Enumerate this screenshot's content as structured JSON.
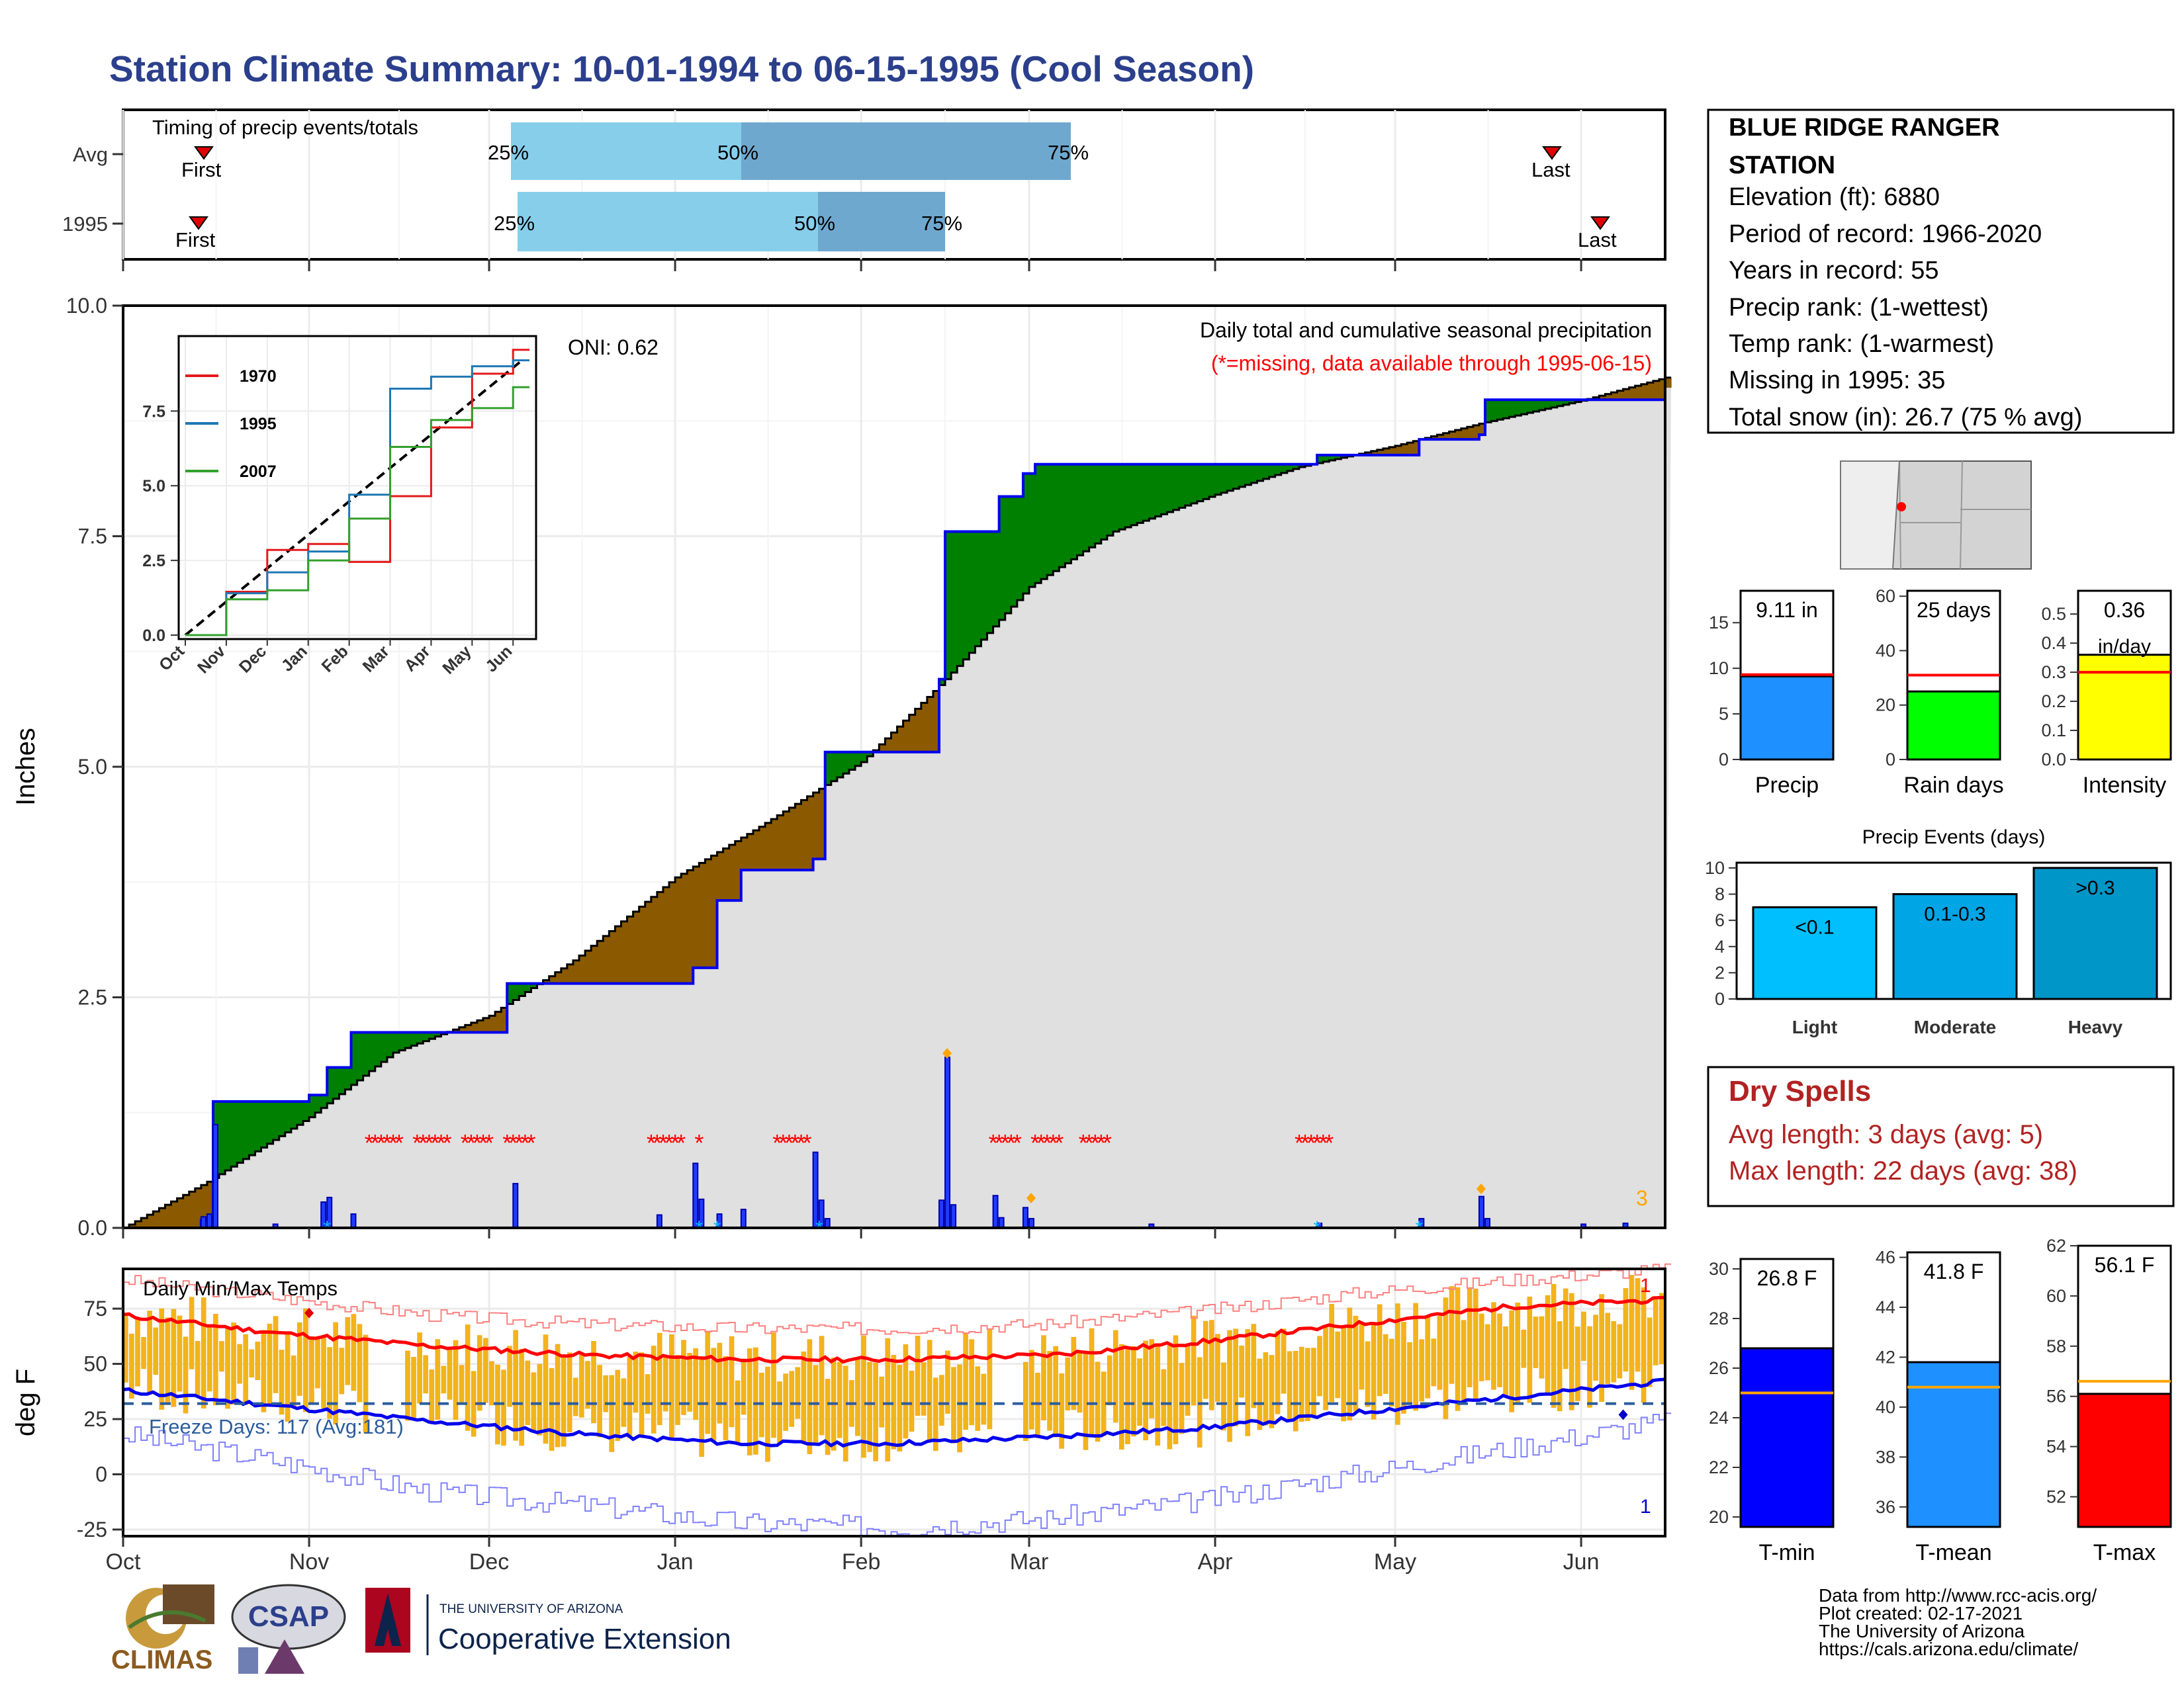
{
  "title": "Station Climate Summary: 10-01-1994 to 06-15-1995 (Cool Season)",
  "colors": {
    "title": "#2B3F8C",
    "above": "#008000",
    "below": "#8B5A00",
    "normal_fill": "#E0E0E0",
    "observed": "#0000EE",
    "dry_spell": "#B22222"
  },
  "station": {
    "name_line1": "BLUE RIDGE RANGER",
    "name_line2": "STATION",
    "elevation": "Elevation (ft): 6880",
    "period": "Period of record: 1966-2020",
    "years": "Years in record: 55",
    "precip_rank": "Precip rank:  (1-wettest)",
    "temp_rank": "Temp rank:  (1-warmest)",
    "missing": "Missing in 1995: 35",
    "snow": "Total snow (in): 26.7 (75 % avg)"
  },
  "timing": {
    "label": "Timing of precip events/totals",
    "rows": [
      "Avg",
      "1995"
    ],
    "first": "First",
    "last": "Last",
    "p25": "25%",
    "p50": "50%",
    "p75": "75%"
  },
  "main": {
    "ylabel": "Inches",
    "caption": "Daily total and cumulative seasonal precipitation",
    "missing_note": "(*=missing, data available through 1995-06-15)",
    "oni": "ONI: 0.62",
    "right_num": "3",
    "month_labels": [
      "Oct",
      "Nov",
      "Dec",
      "Jan",
      "Feb",
      "Mar",
      "Apr",
      "May",
      "Jun"
    ]
  },
  "inset": {
    "series": [
      "1970",
      "1995",
      "2007"
    ],
    "series_colors": [
      "#E31A1C",
      "#1F78B4",
      "#33A02C"
    ]
  },
  "temps": {
    "label": "Daily Min/Max Temps",
    "freeze": "Freeze Days: 117 (Avg:181)",
    "ylabel": "deg F",
    "count_top": "1",
    "count_bottom": "1"
  },
  "summary_bars": [
    {
      "label": "Precip",
      "value_label": "9.11 in",
      "value": 9.11,
      "avg": 9.3,
      "max": 18.5,
      "ticks": [
        0,
        5,
        10,
        15
      ],
      "color": "#1E90FF"
    },
    {
      "label": "Rain days",
      "value_label": "25 days",
      "value": 25,
      "avg": 31,
      "max": 62,
      "ticks": [
        0,
        20,
        40,
        60
      ],
      "color": "#00FF00"
    },
    {
      "label": "Intensity",
      "value_label": "0.36",
      "value_label2": "in/day",
      "value": 0.36,
      "avg": 0.3,
      "max": 0.58,
      "ticks": [
        0.0,
        0.1,
        0.2,
        0.3,
        0.4,
        0.5
      ],
      "color": "#FFFF00"
    }
  ],
  "events": {
    "title": "Precip Events (days)",
    "categories": [
      "Light",
      "Moderate",
      "Heavy"
    ],
    "bins": [
      "<0.1",
      "0.1-0.3",
      ">0.3"
    ],
    "values": [
      7,
      8,
      10
    ],
    "ticks": [
      0,
      2,
      4,
      6,
      8,
      10
    ],
    "colors": [
      "#00BFFF",
      "#00A5E6",
      "#0096C8"
    ]
  },
  "dry_spells": {
    "title": "Dry Spells",
    "avg": "Avg length: 3 days (avg: 5)",
    "max": "Max length: 22 days (avg: 38)"
  },
  "temp_bars": [
    {
      "label": "T-min",
      "value_label": "26.8 F",
      "value": 26.8,
      "avg": 25.0,
      "min": 19.6,
      "max": 30.4,
      "ticks": [
        20,
        22,
        24,
        26,
        28,
        30
      ],
      "color": "#0000FF"
    },
    {
      "label": "T-mean",
      "value_label": "41.8 F",
      "value": 41.8,
      "avg": 40.8,
      "min": 35.2,
      "max": 46.2,
      "ticks": [
        36,
        38,
        40,
        42,
        44,
        46
      ],
      "color": "#1E90FF"
    },
    {
      "label": "T-max",
      "value_label": "56.1 F",
      "value": 56.1,
      "avg": 56.6,
      "min": 50.8,
      "max": 62.0,
      "ticks": [
        52,
        54,
        56,
        58,
        60,
        62
      ],
      "color": "#FF0000"
    }
  ],
  "footer": {
    "credits": [
      "Data from http://www.rcc-acis.org/",
      "Plot created: 02-17-2021",
      "The University of Arizona",
      "https://cals.arizona.edu/climate/"
    ],
    "logo_climas": "CLIMAS",
    "logo_csap": "CSAP",
    "logo_ua_top": "THE UNIVERSITY OF ARIZONA",
    "logo_ua_bottom": "Cooperative Extension"
  },
  "chart_data": [
    {
      "type": "area",
      "title": "Daily total and cumulative seasonal precipitation",
      "ylabel": "Inches",
      "ylim": [
        0,
        10
      ],
      "y_ticks": [
        0.0,
        2.5,
        5.0,
        7.5,
        10.0
      ],
      "x_ticks": [
        "Oct",
        "Nov",
        "Dec",
        "Jan",
        "Feb",
        "Mar",
        "Apr",
        "May",
        "Jun"
      ],
      "series": [
        {
          "name": "normal cumulative",
          "x": [
            "1994-10-01",
            "1994-10-15",
            "1994-11-01",
            "1994-11-15",
            "1994-12-01",
            "1994-12-15",
            "1995-01-01",
            "1995-01-15",
            "1995-02-01",
            "1995-02-15",
            "1995-03-01",
            "1995-03-15",
            "1995-04-01",
            "1995-04-15",
            "1995-05-01",
            "1995-05-15",
            "1995-06-01",
            "1995-06-15"
          ],
          "values": [
            0.0,
            0.5,
            1.2,
            1.9,
            2.3,
            2.9,
            3.8,
            4.35,
            5.05,
            5.95,
            6.95,
            7.55,
            7.95,
            8.25,
            8.48,
            8.72,
            8.97,
            9.22
          ]
        },
        {
          "name": "1995 cumulative",
          "x": [
            "1994-10-01",
            "1994-10-14",
            "1994-10-16",
            "1994-11-01",
            "1994-11-04",
            "1994-11-08",
            "1994-12-04",
            "1995-01-04",
            "1995-01-08",
            "1995-01-12",
            "1995-01-24",
            "1995-01-26",
            "1995-02-14",
            "1995-02-15",
            "1995-02-23",
            "1995-02-24",
            "1995-02-28",
            "1995-03-02",
            "1995-04-18",
            "1995-05-05",
            "1995-05-15",
            "1995-05-16",
            "1995-06-15"
          ],
          "values": [
            0.0,
            0.08,
            1.37,
            1.44,
            1.74,
            2.12,
            2.65,
            2.82,
            3.55,
            3.88,
            4.0,
            5.16,
            5.95,
            7.55,
            7.55,
            7.93,
            8.18,
            8.28,
            8.38,
            8.55,
            8.6,
            8.98,
            9.11
          ]
        },
        {
          "name": "daily precip",
          "x": [
            "10-14",
            "10-15",
            "10-16",
            "10-26",
            "11-03",
            "11-04",
            "11-08",
            "12-05",
            "12-29",
            "1-04",
            "1-05",
            "1-08",
            "1-12",
            "1-24",
            "1-25",
            "1-26",
            "2-14",
            "2-15",
            "2-16",
            "2-23",
            "2-24",
            "2-28",
            "3-01",
            "3-21",
            "4-18",
            "5-05",
            "5-15",
            "5-16",
            "6-01",
            "6-08"
          ],
          "values": [
            0.12,
            0.15,
            1.12,
            0.04,
            0.28,
            0.33,
            0.15,
            0.48,
            0.14,
            0.7,
            0.31,
            0.15,
            0.2,
            0.82,
            0.3,
            0.1,
            0.3,
            1.85,
            0.25,
            0.35,
            0.11,
            0.22,
            0.1,
            0.04,
            0.05,
            0.1,
            0.34,
            0.1,
            0.04,
            0.05
          ]
        }
      ]
    },
    {
      "type": "line",
      "title": "",
      "ylim": [
        0,
        10
      ],
      "y_ticks": [
        0.0,
        2.5,
        5.0,
        7.5
      ],
      "x_ticks": [
        "Oct",
        "Nov",
        "Dec",
        "Jan",
        "Feb",
        "Mar",
        "Apr",
        "May",
        "Jun"
      ],
      "series": [
        {
          "name": "1970",
          "values": [
            0.0,
            1.45,
            2.85,
            3.05,
            2.45,
            4.65,
            6.95,
            8.75,
            9.55
          ]
        },
        {
          "name": "1995",
          "values": [
            0.0,
            1.4,
            2.1,
            2.8,
            4.7,
            8.25,
            8.65,
            9.0,
            9.2
          ]
        },
        {
          "name": "2007",
          "values": [
            0.0,
            1.2,
            1.5,
            2.5,
            3.9,
            6.3,
            7.2,
            7.6,
            8.3
          ]
        }
      ]
    },
    {
      "type": "bar",
      "title": "Daily Min/Max Temps",
      "ylabel": "deg F",
      "ylim": [
        -28,
        93
      ],
      "y_ticks": [
        -25,
        0,
        25,
        50,
        75
      ],
      "x_ticks": [
        "Oct",
        "Nov",
        "Dec",
        "Jan",
        "Feb",
        "Mar",
        "Apr",
        "May",
        "Jun"
      ],
      "freeze_line": 32,
      "series": [
        {
          "name": "avg max",
          "values": [
            72,
            64,
            58,
            54,
            52,
            52,
            54,
            60,
            68,
            76,
            79
          ]
        },
        {
          "name": "avg min",
          "values": [
            38,
            31,
            24,
            18,
            14,
            14,
            17,
            21,
            28,
            35,
            42
          ]
        },
        {
          "name": "record max",
          "values": [
            88,
            80,
            72,
            68,
            66,
            66,
            68,
            74,
            82,
            88,
            93
          ]
        },
        {
          "name": "record min",
          "values": [
            18,
            6,
            -8,
            -14,
            -22,
            -24,
            -20,
            -12,
            0,
            12,
            24
          ]
        }
      ]
    }
  ]
}
